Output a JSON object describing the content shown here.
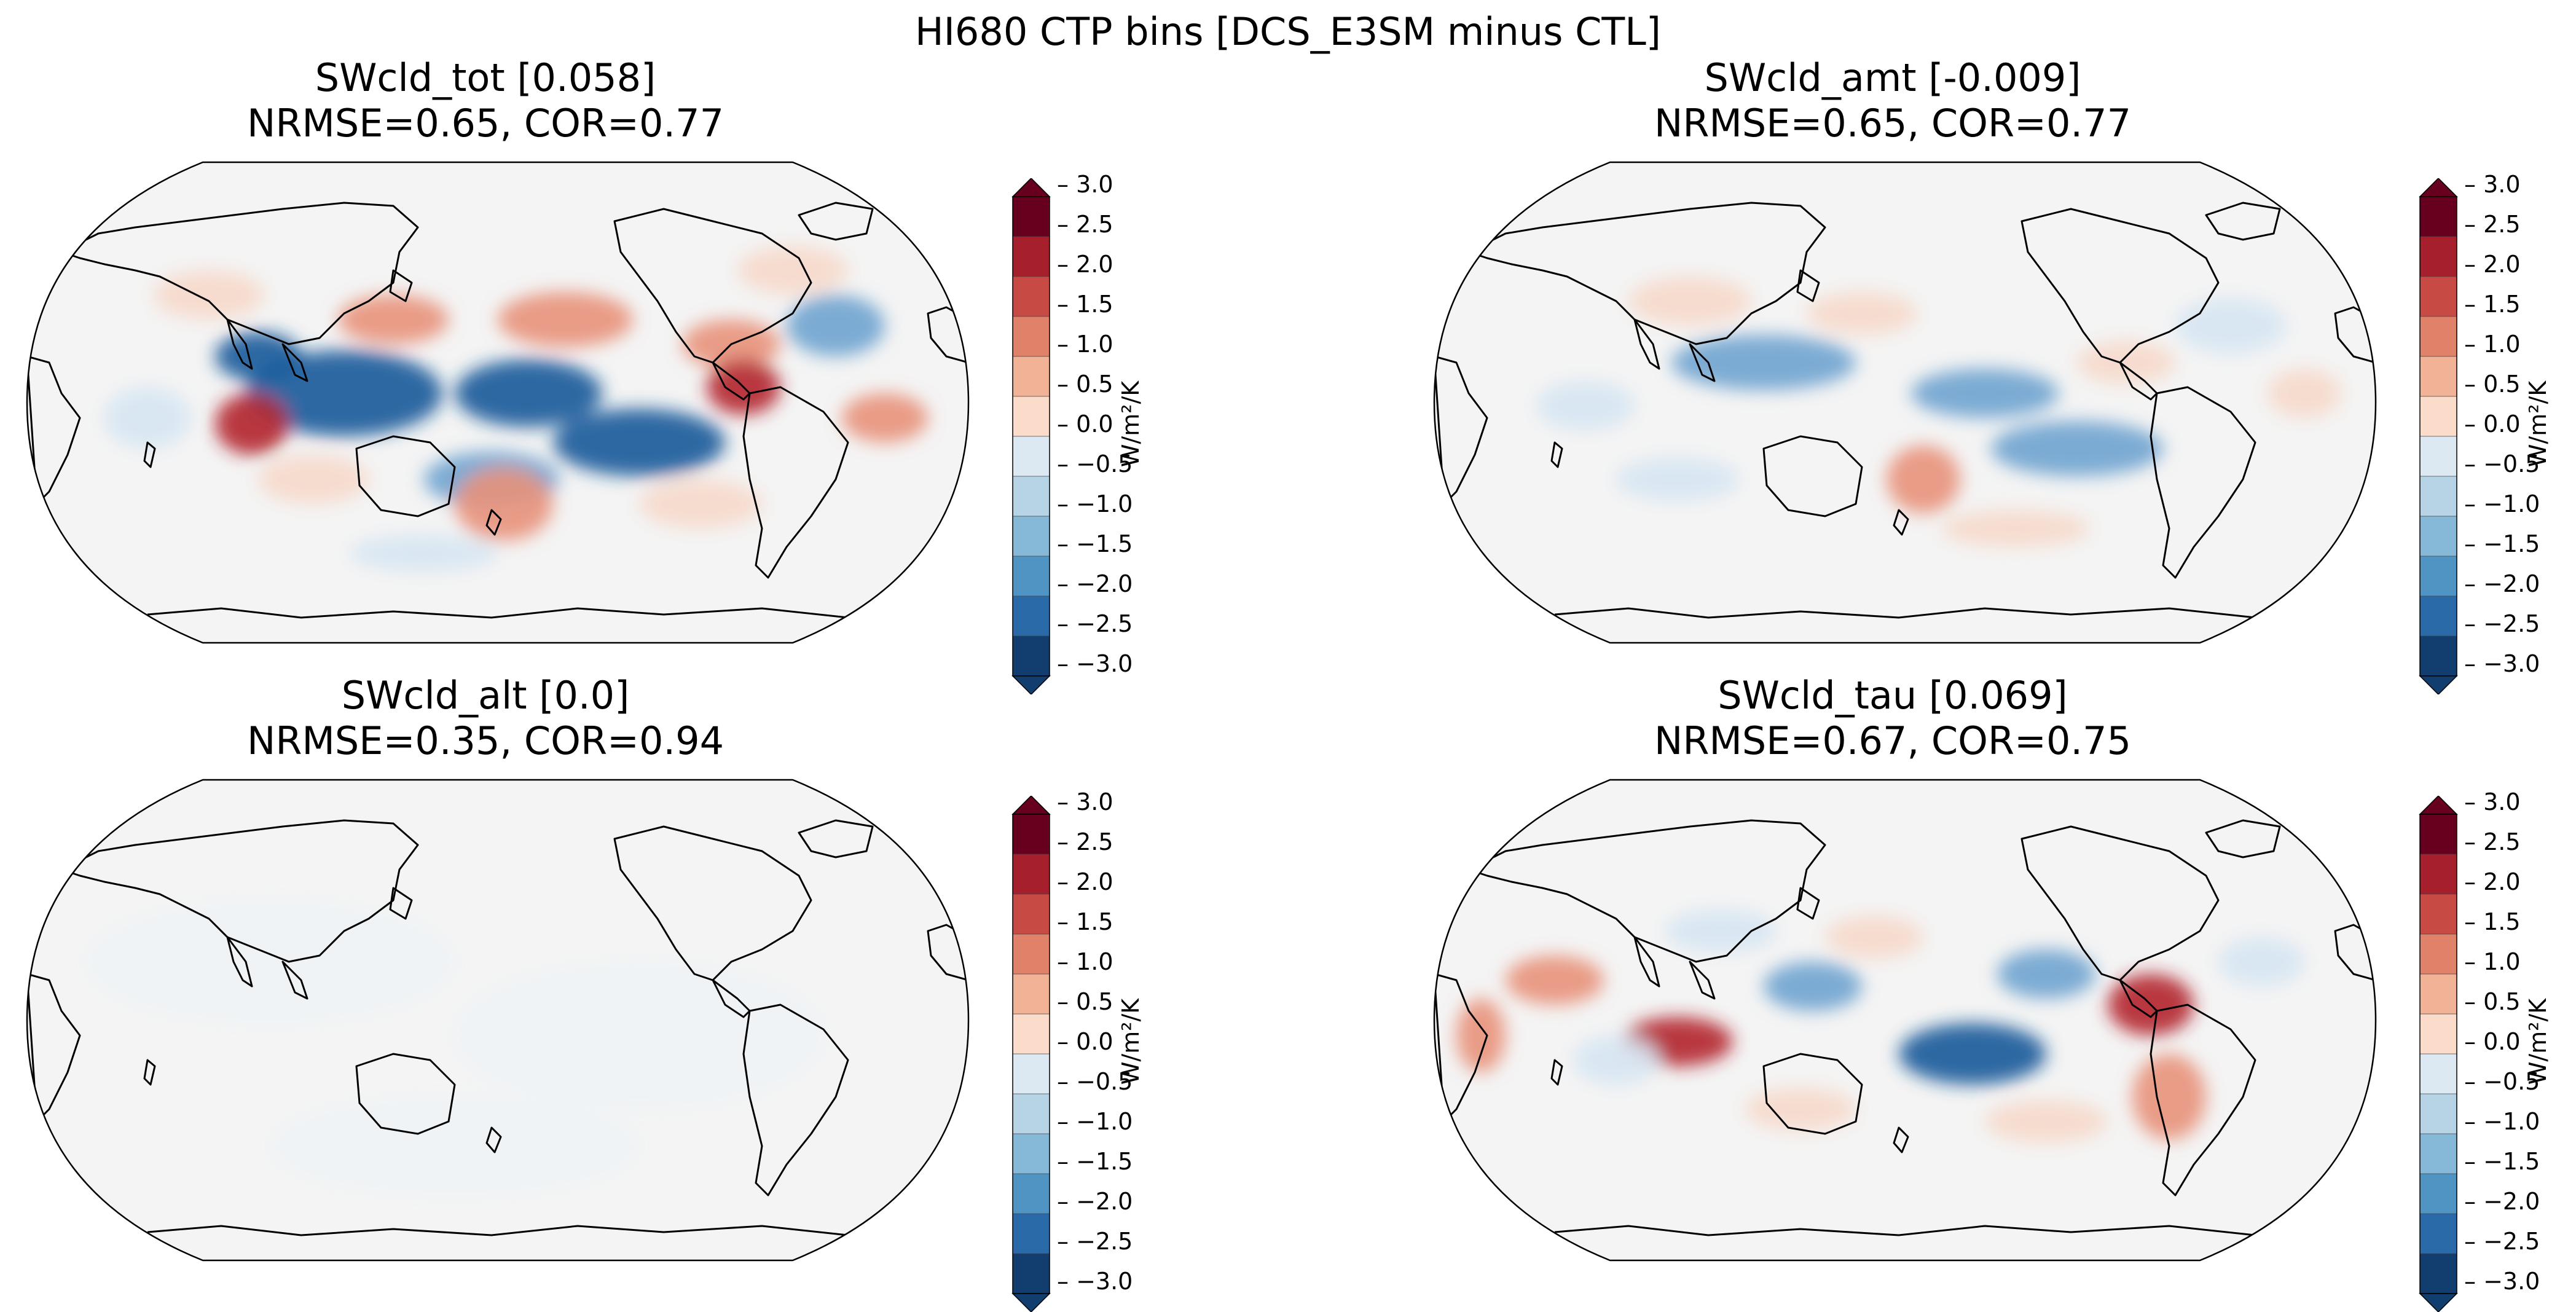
{
  "figure": {
    "title": "HI680 CTP bins [DCS_E3SM minus CTL]",
    "colorbar": {
      "label": "W/m²/K",
      "ticks": [
        "3.0",
        "2.5",
        "2.0",
        "1.5",
        "1.0",
        "0.5",
        "0.0",
        "−0.5",
        "−1.0",
        "−1.5",
        "−2.0",
        "−2.5",
        "−3.0"
      ],
      "range": [
        -3.0,
        3.0
      ],
      "colormap": "RdBu_r"
    }
  },
  "panels": [
    {
      "title": "SWcld_tot [0.058]",
      "stats": "NRMSE=0.65, COR=0.77",
      "intensity": 1.0
    },
    {
      "title": "SWcld_amt [-0.009]",
      "stats": "NRMSE=0.65, COR=0.77",
      "intensity": 0.65
    },
    {
      "title": "SWcld_alt [0.0]",
      "stats": "NRMSE=0.35, COR=0.94",
      "intensity": 0.05
    },
    {
      "title": "SWcld_tau [0.069]",
      "stats": "NRMSE=0.67, COR=0.75",
      "intensity": 0.85
    }
  ],
  "colors": {
    "neg_strong": "#1a5a9a",
    "neg_mid": "#6fa3cf",
    "neg_light": "#d6e6f2",
    "neutral": "#f4f4f4",
    "pos_light": "#f6d9cb",
    "pos_mid": "#e8927a",
    "pos_strong": "#b2262f"
  }
}
